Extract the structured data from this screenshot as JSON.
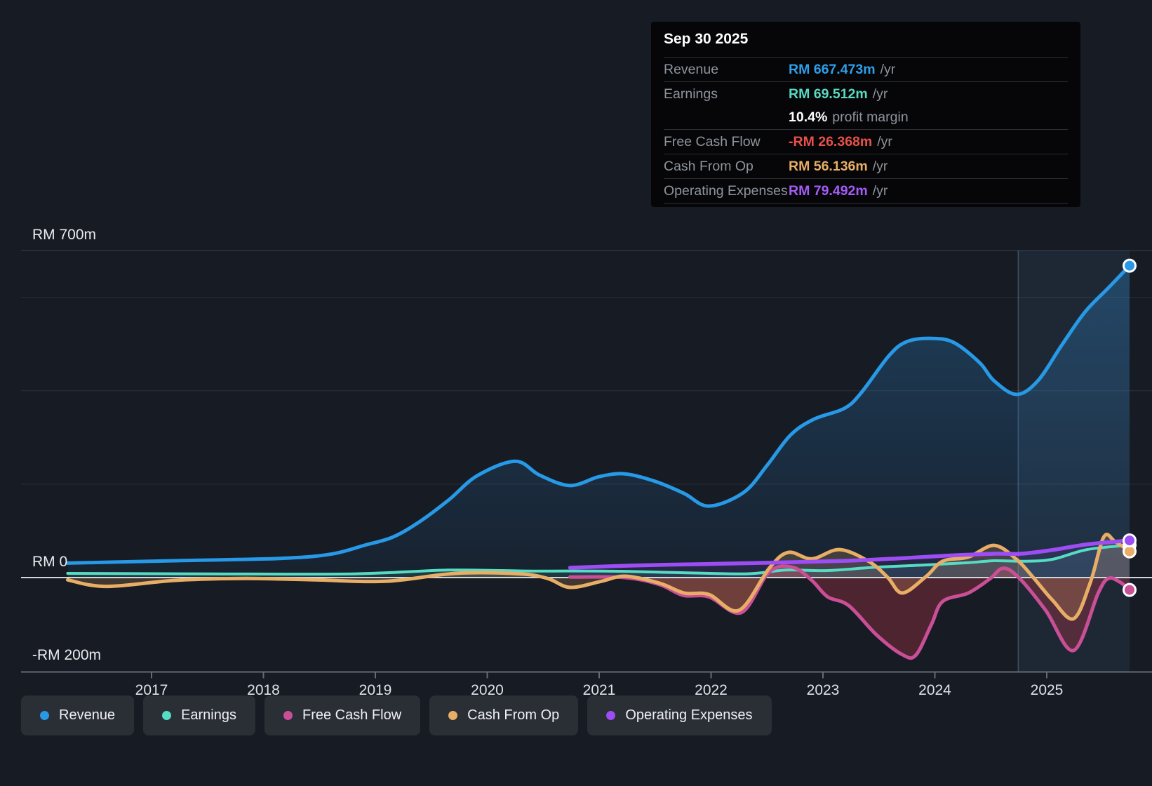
{
  "tooltip": {
    "date": "Sep 30 2025",
    "rows": [
      {
        "label": "Revenue",
        "value": "RM 667.473m",
        "suffix": "/yr",
        "color": "#2e9fe8"
      },
      {
        "label": "Earnings",
        "value": "RM 69.512m",
        "suffix": "/yr",
        "color": "#58dac3"
      },
      {
        "label": "",
        "value": "10.4%",
        "suffix": "profit margin",
        "color": "#ffffff"
      },
      {
        "label": "Free Cash Flow",
        "value": "-RM 26.368m",
        "suffix": "/yr",
        "color": "#e85149"
      },
      {
        "label": "Cash From Op",
        "value": "RM 56.136m",
        "suffix": "/yr",
        "color": "#e9ae66"
      },
      {
        "label": "Operating Expenses",
        "value": "RM 79.492m",
        "suffix": "/yr",
        "color": "#a55cf7"
      }
    ]
  },
  "legend": {
    "items": [
      {
        "label": "Revenue",
        "color": "#2799e6"
      },
      {
        "label": "Earnings",
        "color": "#57dcc4"
      },
      {
        "label": "Free Cash Flow",
        "color": "#c94f96"
      },
      {
        "label": "Cash From Op",
        "color": "#e9ae66"
      },
      {
        "label": "Operating Expenses",
        "color": "#9c4df4"
      }
    ]
  },
  "chart_data": {
    "type": "area",
    "unit": "RM millions per year",
    "y_axis": {
      "labels": [
        {
          "text": "RM 700m",
          "value": 700
        },
        {
          "text": "RM 0",
          "value": 0
        },
        {
          "text": "-RM 200m",
          "value": -200
        }
      ],
      "gridlines": [
        700,
        600,
        400,
        200
      ],
      "ylim": [
        -200,
        700
      ]
    },
    "x_axis": {
      "ticks": [
        "2017",
        "2018",
        "2019",
        "2020",
        "2021",
        "2022",
        "2023",
        "2024",
        "2025"
      ],
      "range": [
        2016.25,
        2025.74
      ]
    },
    "highlight_band": {
      "from": 2024.745,
      "to": 2025.74
    },
    "series": [
      {
        "name": "Revenue",
        "color": "#2799e6",
        "fill": "rgba(45,125,190,0.20)",
        "stroke_width": 5,
        "points": [
          [
            2016.25,
            31
          ],
          [
            2017.2,
            36
          ],
          [
            2018.15,
            41
          ],
          [
            2018.6,
            50
          ],
          [
            2018.9,
            69
          ],
          [
            2019.16,
            87
          ],
          [
            2019.41,
            122
          ],
          [
            2019.66,
            167
          ],
          [
            2019.91,
            218
          ],
          [
            2020.25,
            249
          ],
          [
            2020.47,
            219
          ],
          [
            2020.74,
            197
          ],
          [
            2021.0,
            216
          ],
          [
            2021.23,
            222
          ],
          [
            2021.5,
            206
          ],
          [
            2021.76,
            180
          ],
          [
            2021.98,
            153
          ],
          [
            2022.29,
            182
          ],
          [
            2022.5,
            240
          ],
          [
            2022.71,
            305
          ],
          [
            2022.92,
            339
          ],
          [
            2023.19,
            362
          ],
          [
            2023.34,
            395
          ],
          [
            2023.59,
            475
          ],
          [
            2023.75,
            505
          ],
          [
            2023.97,
            512
          ],
          [
            2024.17,
            503
          ],
          [
            2024.4,
            460
          ],
          [
            2024.53,
            421
          ],
          [
            2024.73,
            392
          ],
          [
            2024.92,
            421
          ],
          [
            2025.13,
            496
          ],
          [
            2025.34,
            568
          ],
          [
            2025.55,
            620
          ],
          [
            2025.74,
            667.5
          ]
        ]
      },
      {
        "name": "Earnings",
        "color": "#57dcc4",
        "fill": "rgba(87,220,196,0.13)",
        "stroke_width": 4,
        "points": [
          [
            2016.25,
            9
          ],
          [
            2017.5,
            8
          ],
          [
            2018.8,
            8
          ],
          [
            2019.66,
            16
          ],
          [
            2020.4,
            14
          ],
          [
            2021.04,
            14
          ],
          [
            2021.66,
            11
          ],
          [
            2022.31,
            8
          ],
          [
            2022.67,
            16
          ],
          [
            2023.04,
            15
          ],
          [
            2023.46,
            22
          ],
          [
            2023.92,
            27
          ],
          [
            2024.3,
            32
          ],
          [
            2024.53,
            36
          ],
          [
            2024.8,
            35
          ],
          [
            2025.05,
            39
          ],
          [
            2025.36,
            60
          ],
          [
            2025.74,
            69.5
          ]
        ]
      },
      {
        "name": "Free Cash Flow",
        "color": "#c94f96",
        "fill": "rgba(190,55,75,0.34)",
        "stroke_width": 5,
        "points": [
          [
            2020.74,
            1
          ],
          [
            2021.23,
            0
          ],
          [
            2021.54,
            -15
          ],
          [
            2021.75,
            -38
          ],
          [
            2021.98,
            -41
          ],
          [
            2022.27,
            -75
          ],
          [
            2022.52,
            12
          ],
          [
            2022.73,
            22
          ],
          [
            2022.9,
            -6
          ],
          [
            2023.04,
            -41
          ],
          [
            2023.23,
            -60
          ],
          [
            2023.48,
            -123
          ],
          [
            2023.71,
            -165
          ],
          [
            2023.83,
            -166
          ],
          [
            2023.97,
            -100
          ],
          [
            2024.07,
            -51
          ],
          [
            2024.3,
            -33
          ],
          [
            2024.49,
            -3
          ],
          [
            2024.61,
            20
          ],
          [
            2024.75,
            0
          ],
          [
            2024.99,
            -70
          ],
          [
            2025.24,
            -156
          ],
          [
            2025.46,
            -33
          ],
          [
            2025.55,
            -2
          ],
          [
            2025.65,
            -9
          ],
          [
            2025.74,
            -26.4
          ]
        ]
      },
      {
        "name": "Cash From Op",
        "color": "#e9ae66",
        "fill": "rgba(233,174,102,0.20)",
        "stroke_width": 5,
        "points": [
          [
            2016.25,
            -5
          ],
          [
            2016.59,
            -19
          ],
          [
            2017.21,
            -6
          ],
          [
            2017.84,
            -2
          ],
          [
            2018.47,
            -5
          ],
          [
            2019.09,
            -8
          ],
          [
            2019.72,
            9
          ],
          [
            2020.29,
            8
          ],
          [
            2020.54,
            -2
          ],
          [
            2020.74,
            -21
          ],
          [
            2021.02,
            -8
          ],
          [
            2021.23,
            3
          ],
          [
            2021.54,
            -12
          ],
          [
            2021.76,
            -33
          ],
          [
            2021.98,
            -36
          ],
          [
            2022.25,
            -70
          ],
          [
            2022.52,
            20
          ],
          [
            2022.69,
            54
          ],
          [
            2022.9,
            40
          ],
          [
            2023.15,
            60
          ],
          [
            2023.42,
            33
          ],
          [
            2023.58,
            0
          ],
          [
            2023.71,
            -33
          ],
          [
            2023.92,
            2
          ],
          [
            2024.07,
            35
          ],
          [
            2024.3,
            44
          ],
          [
            2024.53,
            69
          ],
          [
            2024.73,
            39
          ],
          [
            2024.88,
            0
          ],
          [
            2025.05,
            -48
          ],
          [
            2025.24,
            -88
          ],
          [
            2025.39,
            -10
          ],
          [
            2025.51,
            87
          ],
          [
            2025.61,
            77
          ],
          [
            2025.74,
            56.1
          ]
        ]
      },
      {
        "name": "Operating Expenses",
        "color": "#9c4df4",
        "fill": "rgba(156,77,244,0.10)",
        "stroke_width": 5.5,
        "points": [
          [
            2020.74,
            21
          ],
          [
            2021.33,
            26
          ],
          [
            2021.96,
            29
          ],
          [
            2022.54,
            32
          ],
          [
            2023.23,
            36
          ],
          [
            2023.67,
            41
          ],
          [
            2024.11,
            47
          ],
          [
            2024.53,
            51
          ],
          [
            2024.77,
            51
          ],
          [
            2025.05,
            59
          ],
          [
            2025.36,
            71
          ],
          [
            2025.74,
            79.5
          ]
        ]
      }
    ]
  }
}
